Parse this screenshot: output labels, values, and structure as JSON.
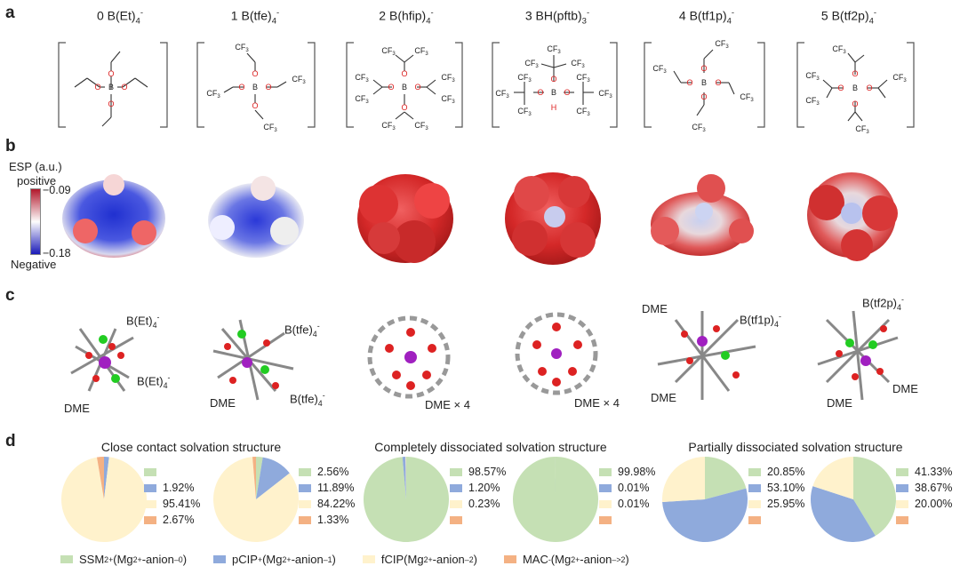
{
  "panels": {
    "a": "a",
    "b": "b",
    "c": "c",
    "d": "d"
  },
  "anions": [
    {
      "index": "0",
      "name": "B(Et)",
      "sub": "4",
      "sup": "-"
    },
    {
      "index": "1",
      "name": "B(tfe)",
      "sub": "4",
      "sup": "-"
    },
    {
      "index": "2",
      "name": "B(hfip)",
      "sub": "4",
      "sup": "-"
    },
    {
      "index": "3",
      "name": "BH(pftb)",
      "sub": "3",
      "sup": "-"
    },
    {
      "index": "4",
      "name": "B(tf1p)",
      "sub": "4",
      "sup": "-"
    },
    {
      "index": "5",
      "name": "B(tf2p)",
      "sub": "4",
      "sup": "-"
    }
  ],
  "atoms": {
    "O": "O",
    "B": "B",
    "H": "H",
    "CF3": "CF"
  },
  "esp": {
    "title": "ESP (a.u.)",
    "positive": "positive",
    "negative": "Negative",
    "max": "−0.09",
    "min": "−0.18"
  },
  "panel_c": {
    "a0_top": "B(Et)",
    "a0_bot": "B(Et)",
    "a0_dme": "DME",
    "a1_top": "B(tfe)",
    "a1_bot": "B(tfe)",
    "a1_dme": "DME",
    "a2_dme": "DME × 4",
    "a3_dme": "DME × 4",
    "a4_dme1": "DME",
    "a4_dme2": "DME",
    "a4_anion": "B(tf1p)",
    "a5_anion": "B(tf2p)",
    "a5_dme1": "DME",
    "a5_dme2": "DME"
  },
  "group_titles": [
    "Close contact solvation structure",
    "Completely dissociated solvation structure",
    "Partially dissociated solvation structure"
  ],
  "colors": {
    "ssm": "#c5e0b4",
    "pcip": "#8faadc",
    "fcip": "#fff2cc",
    "mac": "#f4b183"
  },
  "chart_data": [
    {
      "type": "pie",
      "values": [
        0,
        1.92,
        95.41,
        2.67
      ],
      "labels": [
        "",
        "1.92%",
        "95.41%",
        "2.67%"
      ]
    },
    {
      "type": "pie",
      "values": [
        2.56,
        11.89,
        84.22,
        1.33
      ],
      "labels": [
        "2.56%",
        "11.89%",
        "84.22%",
        "1.33%"
      ]
    },
    {
      "type": "pie",
      "values": [
        98.57,
        1.2,
        0.23,
        0
      ],
      "labels": [
        "98.57%",
        "1.20%",
        "0.23%",
        ""
      ]
    },
    {
      "type": "pie",
      "values": [
        99.98,
        0.01,
        0.01,
        0
      ],
      "labels": [
        "99.98%",
        "0.01%",
        "0.01%",
        ""
      ]
    },
    {
      "type": "pie",
      "values": [
        20.85,
        53.1,
        25.95,
        0
      ],
      "labels": [
        "20.85%",
        "53.10%",
        "25.95%",
        ""
      ]
    },
    {
      "type": "pie",
      "values": [
        41.33,
        38.67,
        20.0,
        0
      ],
      "labels": [
        "41.33%",
        "38.67%",
        "20.00%",
        ""
      ]
    }
  ],
  "legend": [
    {
      "name": "SSM",
      "sup": "2+",
      "species": " (Mg",
      "sup2": "2+",
      "tail": "-anion",
      "sub": "–0",
      ")": ")"
    },
    {
      "name": "pCIP",
      "sup": "+",
      "species": " (Mg",
      "sup2": "2+",
      "tail": "-anion",
      "sub": "–1",
      ")": ")"
    },
    {
      "name": "fCIP",
      "sup": "",
      "species": " (Mg",
      "sup2": "2+",
      "tail": "-anion",
      "sub": "–2",
      ")": ")"
    },
    {
      "name": "MAC",
      "sup": "-",
      "species": " (Mg",
      "sup2": "2+",
      "tail": "-anion",
      "sub": "–>2",
      ")": ")"
    }
  ]
}
